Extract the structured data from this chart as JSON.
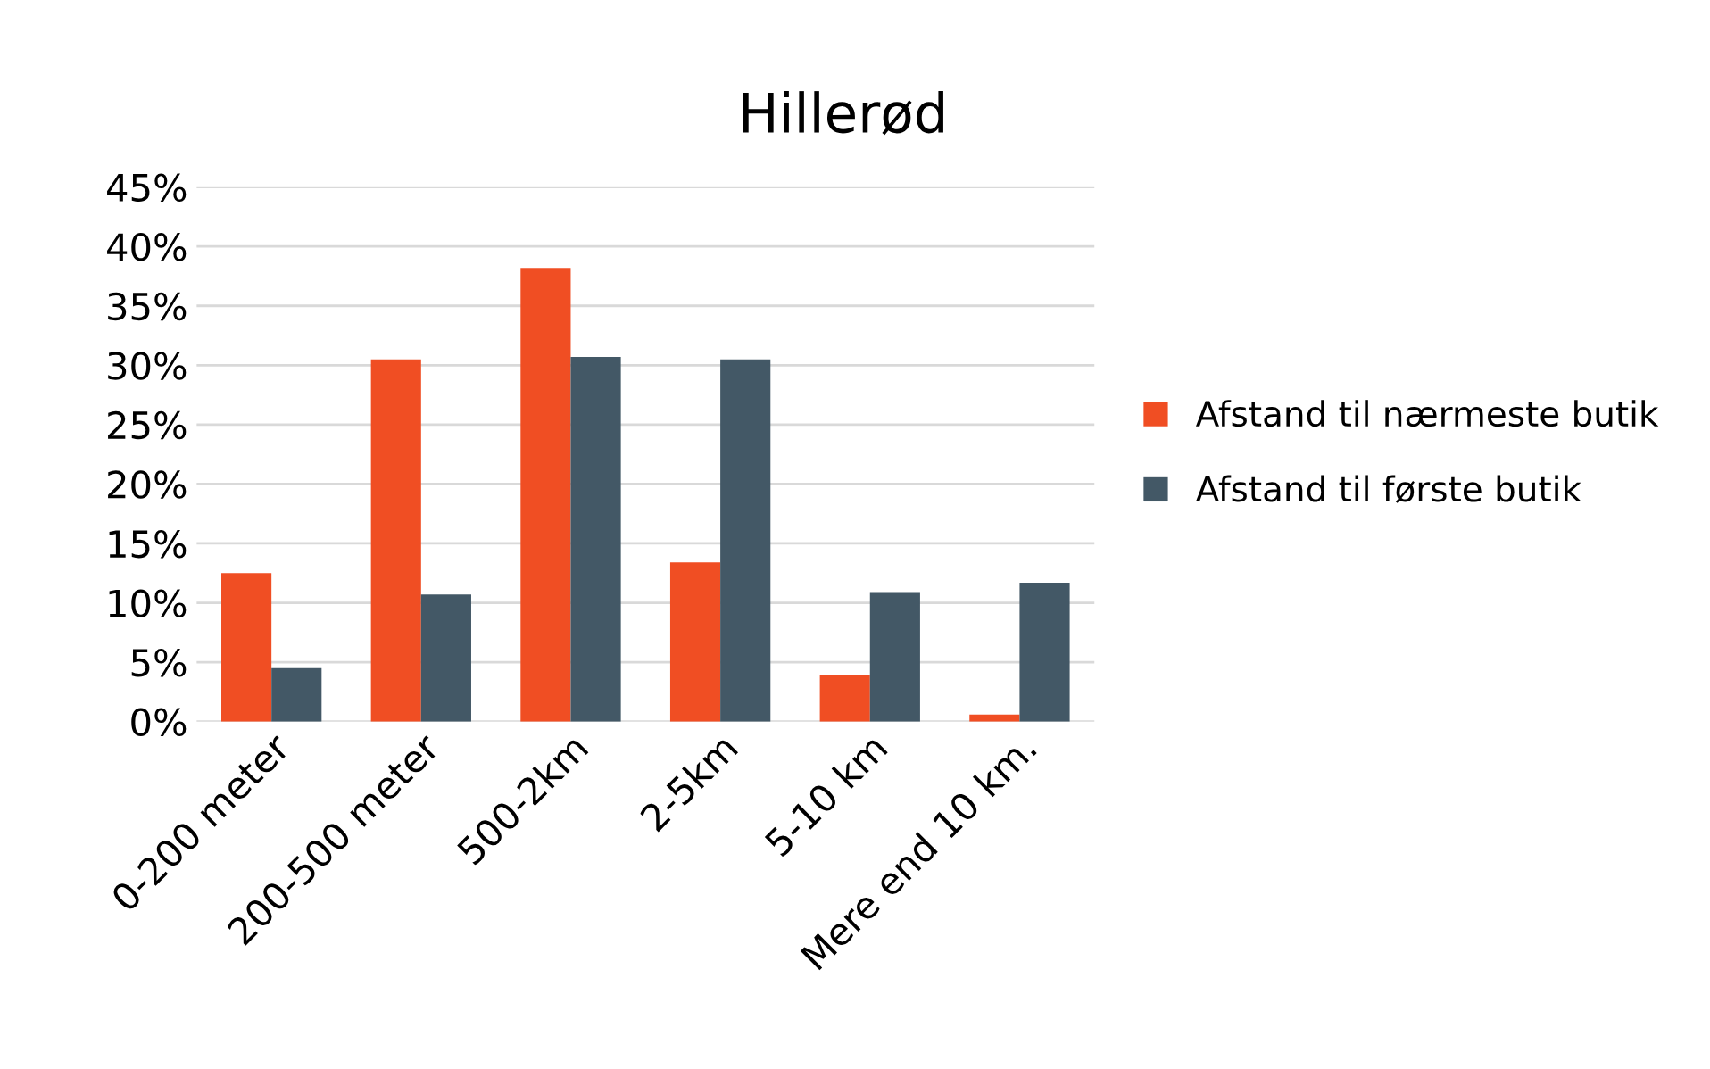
{
  "chart_data": {
    "type": "bar",
    "title": "Hillerød",
    "categories": [
      "0-200 meter",
      "200-500 meter",
      "500-2km",
      "2-5km",
      "5-10 km",
      "Mere end 10 km."
    ],
    "series": [
      {
        "name": "Afstand til nærmeste butik",
        "color": "#f04e23",
        "values": [
          12.5,
          30.5,
          38.2,
          13.4,
          3.9,
          0.6
        ]
      },
      {
        "name": "Afstand til første butik",
        "color": "#435866",
        "values": [
          4.5,
          10.7,
          30.7,
          30.5,
          10.9,
          11.7
        ]
      }
    ],
    "ylim": [
      0,
      45
    ],
    "yticks": [
      {
        "value": 0,
        "label": "0%"
      },
      {
        "value": 5,
        "label": "5%"
      },
      {
        "value": 10,
        "label": "10%"
      },
      {
        "value": 15,
        "label": "15%"
      },
      {
        "value": 20,
        "label": "20%"
      },
      {
        "value": 25,
        "label": "25%"
      },
      {
        "value": 30,
        "label": "30%"
      },
      {
        "value": 35,
        "label": "35%"
      },
      {
        "value": 40,
        "label": "40%"
      },
      {
        "value": 45,
        "label": "45%"
      }
    ],
    "grid": "y",
    "legend": "right"
  }
}
